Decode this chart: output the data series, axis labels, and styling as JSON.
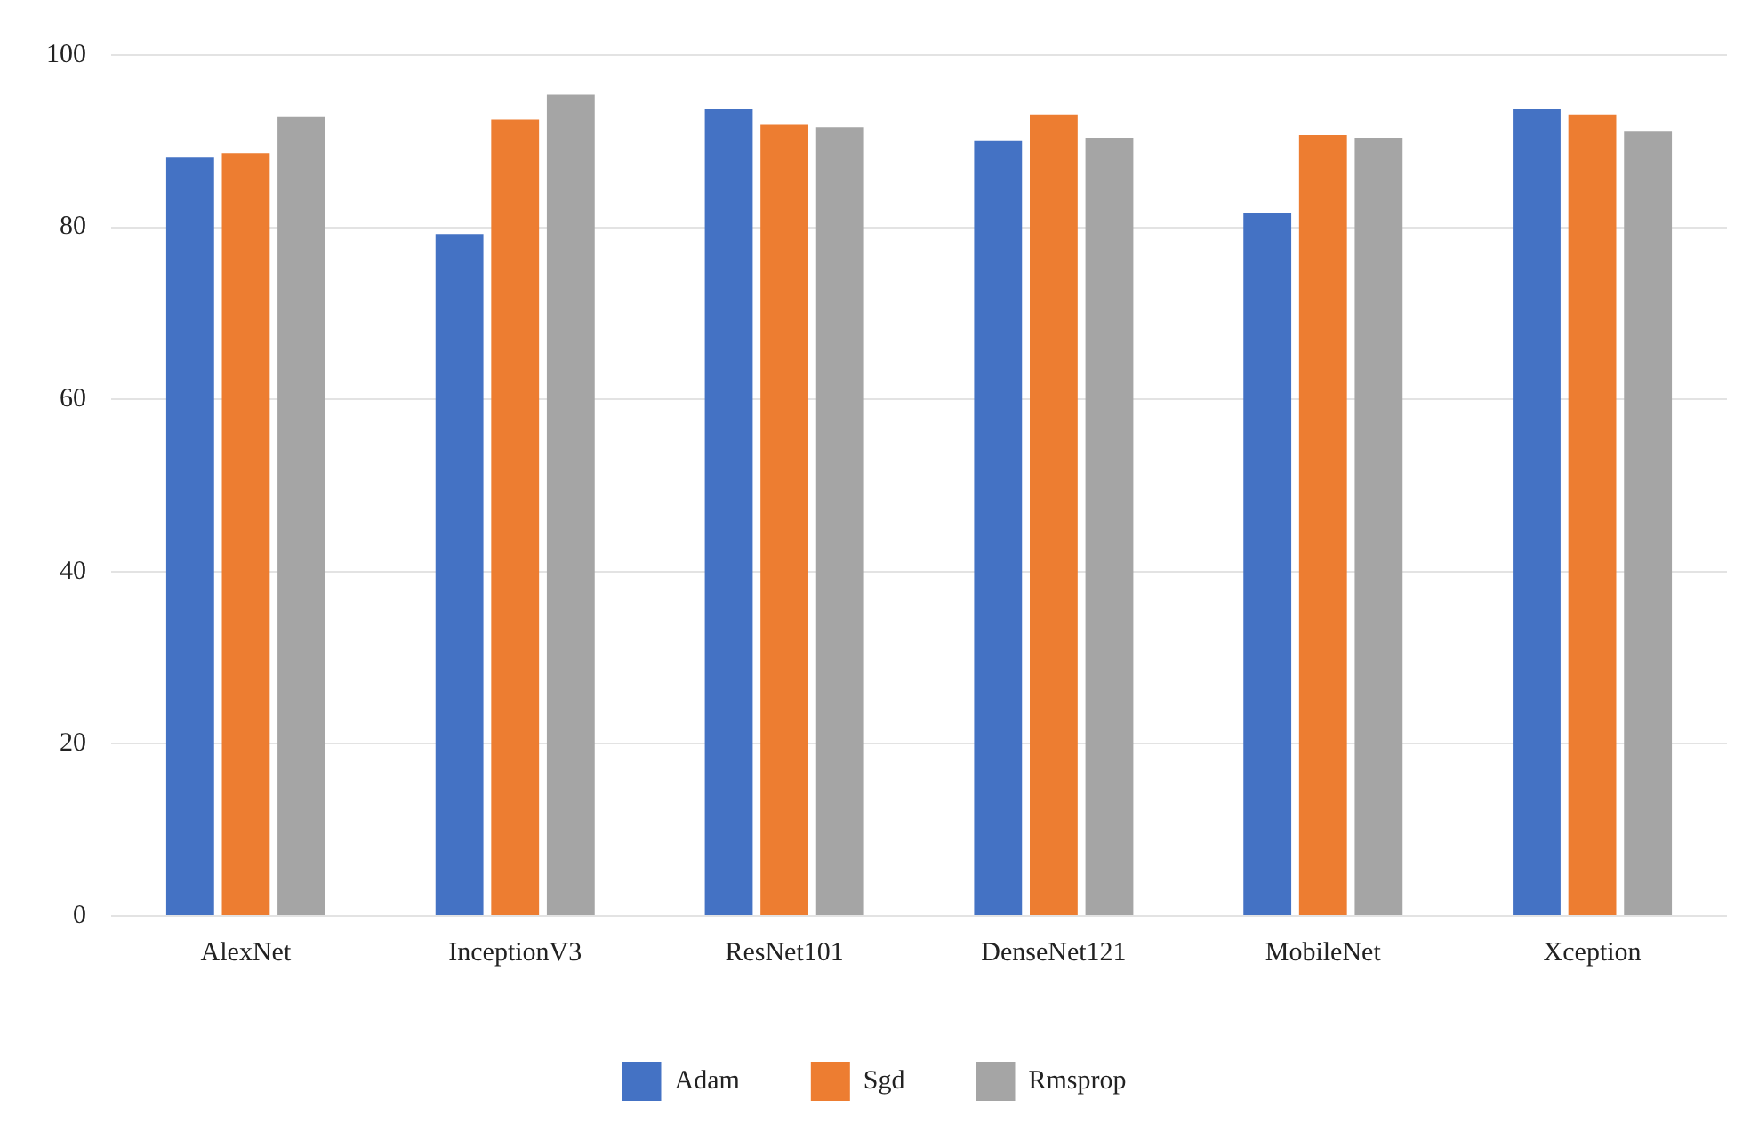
{
  "chart_data": {
    "type": "bar",
    "categories": [
      "AlexNet",
      "InceptionV3",
      "ResNet101",
      "DenseNet121",
      "MobileNet",
      "Xception"
    ],
    "series": [
      {
        "name": "Adam",
        "color": "#4472c4",
        "values": [
          88.1,
          79.2,
          93.7,
          90.0,
          81.7,
          93.7
        ]
      },
      {
        "name": "Sgd",
        "color": "#ed7d31",
        "values": [
          88.6,
          92.5,
          91.9,
          93.1,
          90.7,
          93.1
        ]
      },
      {
        "name": "Rmsprop",
        "color": "#a5a5a5",
        "values": [
          92.8,
          95.4,
          91.6,
          90.4,
          90.4,
          91.2
        ]
      }
    ],
    "ylim": [
      0,
      100
    ],
    "yticks": [
      0,
      20,
      40,
      60,
      80,
      100
    ],
    "grid": "y",
    "legend": "bottom"
  }
}
